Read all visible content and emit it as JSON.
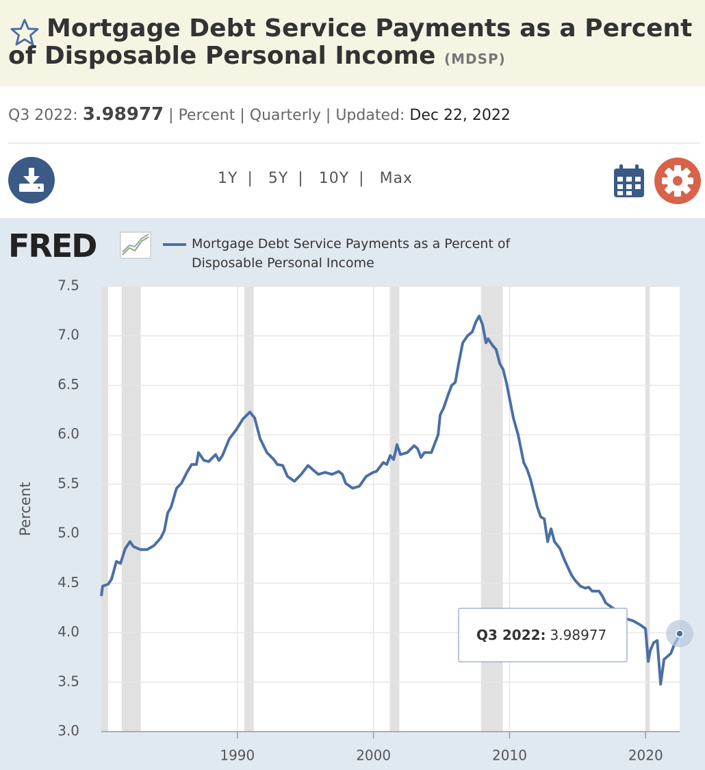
{
  "header": {
    "title": "Mortgage Debt Service Payments as a Percent of Disposable Personal Income",
    "code": "(MDSP)"
  },
  "meta": {
    "period": "Q3 2022:",
    "value": "3.98977",
    "separator": "|",
    "units": "Percent",
    "frequency": "Quarterly",
    "updated_label": "Updated:",
    "updated": "Dec 22, 2022"
  },
  "ranges": [
    "1Y",
    "5Y",
    "10Y",
    "Max"
  ],
  "logo": "FRED",
  "chart_data": {
    "type": "line",
    "ylabel": "Percent",
    "xlim": [
      1980,
      2022.5
    ],
    "ylim": [
      3.0,
      7.5
    ],
    "xticks": [
      1990,
      2000,
      2010,
      2020
    ],
    "yticks": [
      {
        "value": 3.0,
        "label": "3.0"
      },
      {
        "value": 3.5,
        "label": "3.5"
      },
      {
        "value": 4.0,
        "label": "4.0"
      },
      {
        "value": 4.5,
        "label": "4.5"
      },
      {
        "value": 5.0,
        "label": "5.0"
      },
      {
        "value": 5.5,
        "label": "5.5"
      },
      {
        "value": 6.0,
        "label": "6.0"
      },
      {
        "value": 6.5,
        "label": "6.5"
      },
      {
        "value": 7.0,
        "label": "7.0"
      },
      {
        "value": 7.5,
        "label": "7.5"
      }
    ],
    "grid": true,
    "recessions": [
      [
        1980.0,
        1980.5
      ],
      [
        1981.5,
        1982.9
      ],
      [
        1990.5,
        1991.2
      ],
      [
        2001.2,
        2001.9
      ],
      [
        2007.9,
        2009.5
      ],
      [
        2020.0,
        2020.3
      ]
    ],
    "x": [
      1980.0,
      1980.1,
      1980.5,
      1980.75,
      1981.11,
      1981.41,
      1981.76,
      1982.11,
      1982.36,
      1982.87,
      1983.37,
      1983.87,
      1984.38,
      1984.63,
      1984.88,
      1985.13,
      1985.53,
      1985.89,
      1986.29,
      1986.64,
      1986.99,
      1987.14,
      1987.55,
      1987.9,
      1988.4,
      1988.65,
      1988.9,
      1989.41,
      1989.91,
      1990.41,
      1990.92,
      1991.27,
      1991.67,
      1992.17,
      1992.68,
      1992.93,
      1993.33,
      1993.68,
      1994.19,
      1994.69,
      1995.19,
      1995.69,
      1995.95,
      1996.45,
      1996.95,
      1997.45,
      1997.71,
      1997.96,
      1998.46,
      1998.96,
      1999.47,
      1999.97,
      2000.22,
      2000.72,
      2000.98,
      2001.23,
      2001.48,
      2001.73,
      2001.98,
      2002.48,
      2002.99,
      2003.24,
      2003.49,
      2003.74,
      2004.25,
      2004.75,
      2004.9,
      2005.15,
      2005.5,
      2005.75,
      2006.01,
      2006.26,
      2006.56,
      2006.91,
      2007.26,
      2007.52,
      2007.77,
      2008.02,
      2008.27,
      2008.42,
      2008.77,
      2009.02,
      2009.28,
      2009.53,
      2009.78,
      2010.28,
      2010.63,
      2011.04,
      2011.29,
      2011.54,
      2012.04,
      2012.29,
      2012.55,
      2012.8,
      2013.05,
      2013.3,
      2013.7,
      2014.05,
      2014.56,
      2014.81,
      2015.21,
      2015.56,
      2015.81,
      2016.07,
      2016.57,
      2016.82,
      2017.07,
      2017.58,
      2018.08,
      2018.58,
      2019.08,
      2019.59,
      2019.99,
      2020.19,
      2020.34,
      2020.59,
      2020.85,
      2021.1,
      2021.35,
      2021.6,
      2021.85,
      2022.1,
      2022.35,
      2022.5
    ],
    "series": [
      {
        "name": "Mortgage Debt Service Payments as a Percent of Disposable Personal Income",
        "color": "#4b6fa5",
        "values": [
          4.37,
          4.47,
          4.49,
          4.54,
          4.72,
          4.7,
          4.85,
          4.92,
          4.87,
          4.84,
          4.84,
          4.88,
          4.96,
          5.03,
          5.21,
          5.27,
          5.46,
          5.51,
          5.62,
          5.7,
          5.7,
          5.82,
          5.74,
          5.73,
          5.8,
          5.74,
          5.79,
          5.96,
          6.05,
          6.16,
          6.23,
          6.17,
          5.96,
          5.82,
          5.75,
          5.7,
          5.69,
          5.58,
          5.53,
          5.6,
          5.69,
          5.63,
          5.6,
          5.62,
          5.6,
          5.63,
          5.6,
          5.51,
          5.46,
          5.48,
          5.58,
          5.62,
          5.63,
          5.72,
          5.7,
          5.79,
          5.75,
          5.9,
          5.8,
          5.82,
          5.89,
          5.86,
          5.77,
          5.82,
          5.82,
          6.0,
          6.2,
          6.27,
          6.41,
          6.5,
          6.53,
          6.72,
          6.93,
          7.0,
          7.04,
          7.14,
          7.2,
          7.11,
          6.93,
          6.97,
          6.9,
          6.86,
          6.72,
          6.66,
          6.52,
          6.17,
          6.0,
          5.72,
          5.65,
          5.55,
          5.27,
          5.17,
          5.15,
          4.92,
          5.05,
          4.92,
          4.85,
          4.73,
          4.58,
          4.53,
          4.47,
          4.45,
          4.46,
          4.42,
          4.42,
          4.37,
          4.3,
          4.25,
          4.21,
          4.14,
          4.12,
          4.08,
          4.04,
          3.71,
          3.82,
          3.9,
          3.92,
          3.48,
          3.73,
          3.76,
          3.79,
          3.88,
          3.94,
          3.98977
        ]
      }
    ],
    "tooltip": {
      "label": "Q3 2022:"
    }
  }
}
